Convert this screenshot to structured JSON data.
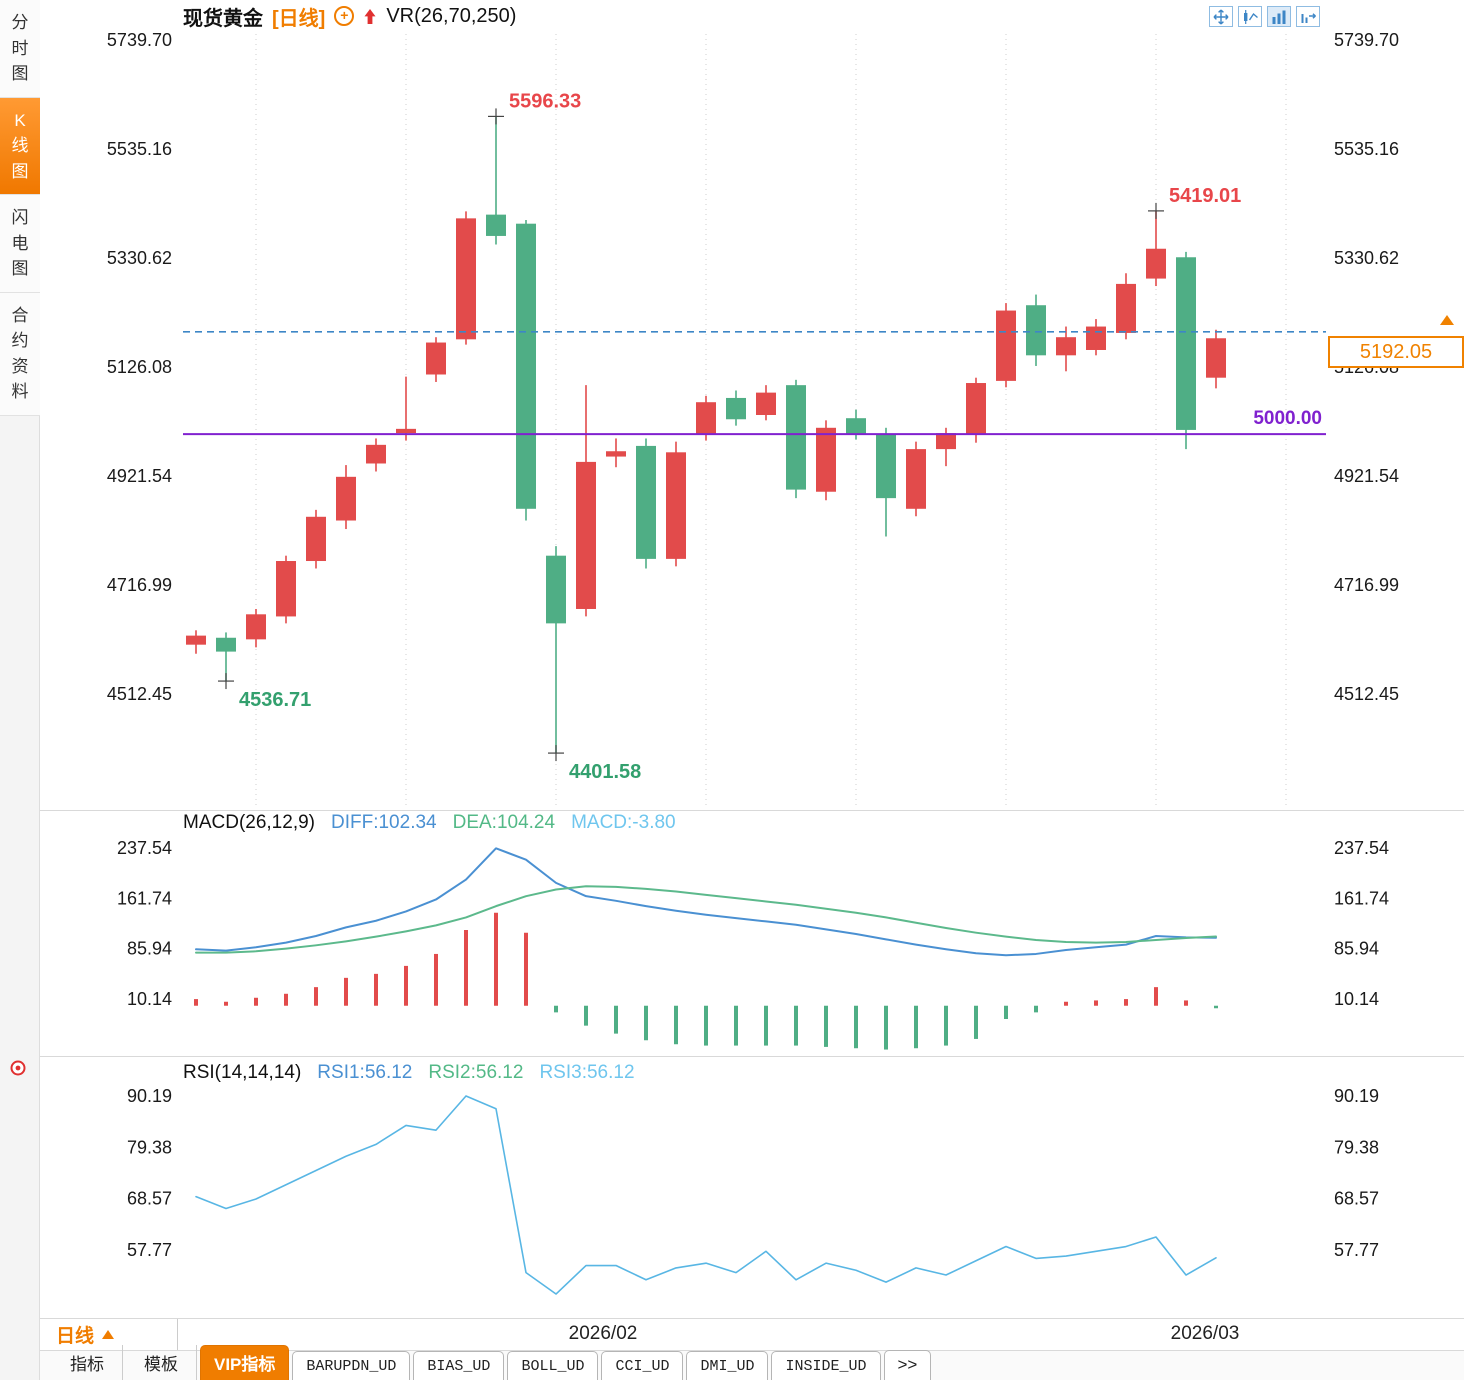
{
  "header": {
    "symbol": "现货黄金",
    "period": "[日线]",
    "indicator": "VR(26,70,250)"
  },
  "sidebar": {
    "tabs": [
      {
        "label": "分时图",
        "active": false
      },
      {
        "label": "K线图",
        "active": true
      },
      {
        "label": "闪电图",
        "active": false
      },
      {
        "label": "合约资料",
        "active": false
      }
    ]
  },
  "toolbar": {
    "icons": [
      "pan-icon",
      "kline-style-icon",
      "bar-chart-icon",
      "compare-chart-icon"
    ]
  },
  "price_marker": {
    "value": "5192.05"
  },
  "hline": {
    "label": "5000.00",
    "value": 5000.0
  },
  "axis": {
    "x_labels": [
      "2026/02",
      "2026/03"
    ]
  },
  "bottom": {
    "period_label": "日线",
    "tabs": [
      {
        "label": "指标",
        "style": "plain",
        "active": false
      },
      {
        "label": "模板",
        "style": "plain",
        "active": false
      },
      {
        "label": "VIP指标",
        "style": "tab",
        "active": true
      },
      {
        "label": "BARUPDN_UD",
        "style": "tab mono",
        "active": false
      },
      {
        "label": "BIAS_UD",
        "style": "tab mono",
        "active": false
      },
      {
        "label": "BOLL_UD",
        "style": "tab mono",
        "active": false
      },
      {
        "label": "CCI_UD",
        "style": "tab mono",
        "active": false
      },
      {
        "label": "DMI_UD",
        "style": "tab mono",
        "active": false
      },
      {
        "label": "INSIDE_UD",
        "style": "tab mono",
        "active": false
      },
      {
        "label": ">>",
        "style": "tab",
        "active": false
      }
    ]
  },
  "colors": {
    "up": "#e24b4b",
    "down": "#4fae85",
    "diff_line": "#4a90d2",
    "dea_line": "#5cb98c",
    "rsi_line": "#58b6e4",
    "accent_orange": "#f08200",
    "hline_purple": "#8021cf",
    "current_price_line": "#3d86c6",
    "annotation_up": "#e8464a",
    "annotation_down": "#33a06e"
  },
  "chart_data": [
    {
      "type": "candlestick",
      "title": "现货黄金 日线",
      "y_ticks": [
        5739.7,
        5535.16,
        5330.62,
        5126.08,
        4921.54,
        4716.99,
        4512.45
      ],
      "current_price": 5192.05,
      "support_line": 5000.0,
      "x_labels": [
        "2026/02",
        "2026/03"
      ],
      "annotations": [
        {
          "text": "5596.33",
          "candle": 10,
          "pos": "high",
          "color": "#e8464a"
        },
        {
          "text": "5419.01",
          "candle": 32,
          "pos": "high",
          "color": "#e8464a"
        },
        {
          "text": "4536.71",
          "candle": 1,
          "pos": "low",
          "color": "#33a06e"
        },
        {
          "text": "4401.58",
          "candle": 12,
          "pos": "low",
          "color": "#33a06e"
        }
      ],
      "candles_ohlc": [
        [
          4605,
          4632,
          4588,
          4622
        ],
        [
          4618,
          4628,
          4536.71,
          4592
        ],
        [
          4615,
          4672,
          4600,
          4662
        ],
        [
          4658,
          4772,
          4645,
          4762
        ],
        [
          4762,
          4858,
          4748,
          4845
        ],
        [
          4838,
          4942,
          4822,
          4920
        ],
        [
          4945,
          4992,
          4930,
          4980
        ],
        [
          5002,
          5108,
          4988,
          5010
        ],
        [
          5112,
          5182,
          5098,
          5172
        ],
        [
          5178,
          5418,
          5168,
          5405
        ],
        [
          5412,
          5596.33,
          5356,
          5372
        ],
        [
          5395,
          5402,
          4838,
          4860
        ],
        [
          4772,
          4790,
          4401.58,
          4645
        ],
        [
          4672,
          5092,
          4658,
          4948
        ],
        [
          4958,
          4992,
          4938,
          4968
        ],
        [
          4978,
          4992,
          4748,
          4766
        ],
        [
          4766,
          4986,
          4752,
          4966
        ],
        [
          5000,
          5072,
          4988,
          5060
        ],
        [
          5068,
          5082,
          5016,
          5028
        ],
        [
          5036,
          5092,
          5026,
          5078
        ],
        [
          5092,
          5102,
          4880,
          4896
        ],
        [
          4892,
          5026,
          4876,
          5012
        ],
        [
          5030,
          5046,
          4990,
          5000
        ],
        [
          5000,
          5012,
          4808,
          4880
        ],
        [
          4860,
          4986,
          4846,
          4972
        ],
        [
          4972,
          5012,
          4940,
          5002
        ],
        [
          5000,
          5106,
          4984,
          5096
        ],
        [
          5100,
          5246,
          5088,
          5232
        ],
        [
          5242,
          5262,
          5128,
          5148
        ],
        [
          5148,
          5202,
          5118,
          5182
        ],
        [
          5158,
          5216,
          5148,
          5202
        ],
        [
          5190,
          5302,
          5178,
          5282
        ],
        [
          5292,
          5419.01,
          5278,
          5348
        ],
        [
          5332,
          5342,
          4972,
          5008
        ],
        [
          5106,
          5196,
          5086,
          5180
        ]
      ]
    },
    {
      "type": "line+histogram",
      "title": "MACD(26,12,9)",
      "legend": {
        "diff": "DIFF:102.34",
        "dea": "DEA:104.24",
        "macd": "MACD:-3.80"
      },
      "y_ticks": [
        237.54,
        161.74,
        85.94,
        10.14
      ],
      "diff": [
        85,
        83,
        88,
        95,
        105,
        118,
        128,
        142,
        160,
        190,
        237,
        220,
        185,
        165,
        158,
        150,
        143,
        137,
        132,
        127,
        122,
        115,
        108,
        100,
        92,
        85,
        79,
        76,
        78,
        84,
        88,
        92,
        105,
        103,
        102.34
      ],
      "dea": [
        80,
        80,
        82,
        86,
        91,
        97,
        104,
        112,
        121,
        133,
        150,
        165,
        175,
        180,
        179,
        176,
        172,
        167,
        162,
        157,
        152,
        146,
        140,
        133,
        125,
        117,
        110,
        104,
        99,
        96,
        95,
        96,
        99,
        102,
        104.24
      ],
      "hist": [
        10,
        6,
        12,
        18,
        28,
        42,
        48,
        60,
        78,
        114,
        140,
        110,
        -10,
        -30,
        -42,
        -52,
        -58,
        -60,
        -60,
        -60,
        -60,
        -62,
        -64,
        -66,
        -64,
        -60,
        -50,
        -20,
        -10,
        6,
        8,
        10,
        28,
        8,
        -3.8
      ]
    },
    {
      "type": "line",
      "title": "RSI(14,14,14)",
      "legend": {
        "rsi1": "RSI1:56.12",
        "rsi2": "RSI2:56.12",
        "rsi3": "RSI3:56.12"
      },
      "y_ticks": [
        90.19,
        79.38,
        68.57,
        57.77
      ],
      "rsi": [
        69,
        66.5,
        68.5,
        71.5,
        74.5,
        77.5,
        80,
        84,
        83,
        90.19,
        87.5,
        53,
        48.5,
        54.5,
        54.5,
        51.5,
        54,
        55,
        53,
        57.5,
        51.5,
        55,
        53.5,
        51,
        54,
        52.5,
        55.5,
        58.5,
        56,
        56.5,
        57.5,
        58.5,
        60.5,
        52.5,
        56.12
      ]
    }
  ]
}
